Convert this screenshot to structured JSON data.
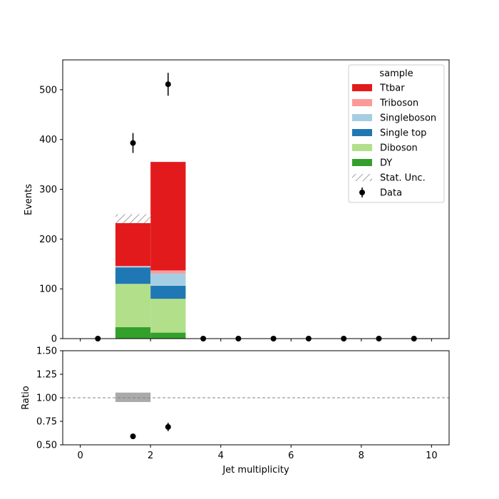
{
  "chart_data": {
    "type": "stacked-histogram-with-ratio",
    "xlabel": "Jet multiplicity",
    "main": {
      "ylabel": "Events",
      "xlim": [
        -0.5,
        10.5
      ],
      "ylim": [
        0,
        560
      ],
      "yticks": [
        0,
        100,
        200,
        300,
        400,
        500
      ],
      "bin_edges": [
        0,
        1,
        2,
        3,
        4,
        5,
        6,
        7,
        8,
        9,
        10
      ],
      "series": [
        {
          "name": "DY",
          "color": "#33a02c",
          "values": [
            0,
            23,
            12,
            0,
            0,
            0,
            0,
            0,
            0,
            0
          ]
        },
        {
          "name": "Diboson",
          "color": "#b2df8a",
          "values": [
            0,
            87,
            68,
            0,
            0,
            0,
            0,
            0,
            0,
            0
          ]
        },
        {
          "name": "Single top",
          "color": "#1f78b4",
          "values": [
            0,
            33,
            26,
            0,
            0,
            0,
            0,
            0,
            0,
            0
          ]
        },
        {
          "name": "Singleboson",
          "color": "#a6cee3",
          "values": [
            0,
            2,
            25,
            0,
            0,
            0,
            0,
            0,
            0,
            0
          ]
        },
        {
          "name": "Triboson",
          "color": "#fb9a99",
          "values": [
            0,
            1,
            6,
            0,
            0,
            0,
            0,
            0,
            0,
            0
          ]
        },
        {
          "name": "Ttbar",
          "color": "#e31a1c",
          "values": [
            0,
            86,
            218,
            0,
            0,
            0,
            0,
            0,
            0,
            0
          ]
        }
      ],
      "stat_unc": [
        {
          "bin": 1,
          "low": 232,
          "high": 250
        }
      ],
      "data": {
        "name": "Data",
        "x": [
          0.5,
          1.5,
          2.5,
          3.5,
          4.5,
          5.5,
          6.5,
          7.5,
          8.5,
          9.5
        ],
        "y": [
          0,
          393,
          511,
          0,
          0,
          0,
          0,
          0,
          0,
          0
        ],
        "err": [
          0,
          20,
          23,
          0,
          0,
          0,
          0,
          0,
          0,
          0
        ]
      },
      "legend": {
        "title": "sample",
        "placement": "top-right",
        "entries": [
          {
            "label": "Ttbar",
            "kind": "patch",
            "color": "#e31a1c"
          },
          {
            "label": "Triboson",
            "kind": "patch",
            "color": "#fb9a99"
          },
          {
            "label": "Singleboson",
            "kind": "patch",
            "color": "#a6cee3"
          },
          {
            "label": "Single top",
            "kind": "patch",
            "color": "#1f78b4"
          },
          {
            "label": "Diboson",
            "kind": "patch",
            "color": "#b2df8a"
          },
          {
            "label": "DY",
            "kind": "patch",
            "color": "#33a02c"
          },
          {
            "label": "Stat. Unc.",
            "kind": "hatch",
            "color": "#888888"
          },
          {
            "label": "Data",
            "kind": "marker",
            "color": "#000000"
          }
        ]
      }
    },
    "ratio": {
      "ylabel": "Ratio",
      "ylim": [
        0.5,
        1.5
      ],
      "yticks": [
        "0.50",
        "0.75",
        "1.00",
        "1.25",
        "1.50"
      ],
      "xticks": [
        "0",
        "2",
        "4",
        "6",
        "8",
        "10"
      ],
      "reference_line": 1.0,
      "unc_band": [
        {
          "bin": 1,
          "low": 0.955,
          "high": 1.055
        }
      ],
      "points": [
        {
          "x": 1.5,
          "y": 0.59,
          "err": 0.02
        },
        {
          "x": 2.5,
          "y": 0.69,
          "err": 0.045
        }
      ]
    }
  }
}
